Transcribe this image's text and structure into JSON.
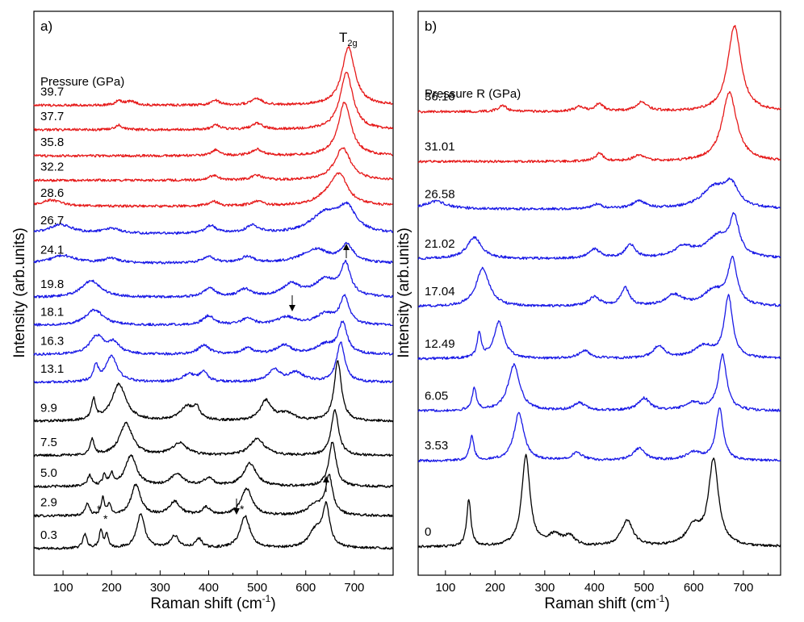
{
  "chart_data": [
    {
      "type": "line",
      "panel": "a)",
      "xlabel": "Raman shift (cm",
      "xlabel_sup": "-1",
      "xlabel_close": ")",
      "ylabel": "Intensity (arb.units)",
      "xlim": [
        40,
        780
      ],
      "xticks": [
        100,
        200,
        300,
        400,
        500,
        600,
        700
      ],
      "legend_title": "Pressure (GPa)",
      "peak_label_main": "T",
      "peak_label_sub": "2g",
      "star_label": "*",
      "series": [
        {
          "name": "0.3",
          "color": "#000000",
          "level": 0.0,
          "peaks": [
            [
              145,
              18,
              5
            ],
            [
              178,
              24,
              4
            ],
            [
              190,
              18,
              4
            ],
            [
              260,
              44,
              10
            ],
            [
              330,
              16,
              10
            ],
            [
              380,
              12,
              8
            ],
            [
              475,
              42,
              12
            ],
            [
              620,
              22,
              16
            ],
            [
              642,
              52,
              9
            ]
          ]
        },
        {
          "name": "2.9",
          "color": "#000000",
          "level": 1.0,
          "peaks": [
            [
              150,
              16,
              5
            ],
            [
              182,
              22,
              4
            ],
            [
              195,
              14,
              4
            ],
            [
              250,
              40,
              12
            ],
            [
              330,
              18,
              14
            ],
            [
              395,
              10,
              10
            ],
            [
              478,
              35,
              14
            ],
            [
              620,
              14,
              18
            ],
            [
              648,
              50,
              9
            ]
          ]
        },
        {
          "name": "5.0",
          "color": "#000000",
          "level": 1.9,
          "peaks": [
            [
              155,
              14,
              5
            ],
            [
              185,
              14,
              4
            ],
            [
              200,
              14,
              5
            ],
            [
              240,
              40,
              14
            ],
            [
              335,
              16,
              16
            ],
            [
              400,
              10,
              12
            ],
            [
              485,
              30,
              16
            ],
            [
              655,
              58,
              9
            ]
          ]
        },
        {
          "name": "7.5",
          "color": "#000000",
          "level": 2.85,
          "peaks": [
            [
              160,
              20,
              5
            ],
            [
              230,
              42,
              16
            ],
            [
              340,
              16,
              18
            ],
            [
              500,
              22,
              18
            ],
            [
              660,
              60,
              9
            ]
          ]
        },
        {
          "name": "9.9",
          "color": "#000000",
          "level": 3.9,
          "peaks": [
            [
              163,
              26,
              5
            ],
            [
              215,
              48,
              18
            ],
            [
              355,
              18,
              18
            ],
            [
              375,
              14,
              8
            ],
            [
              518,
              26,
              14
            ],
            [
              560,
              10,
              20
            ],
            [
              666,
              78,
              9
            ]
          ]
        },
        {
          "name": "13.1",
          "color": "#1a1ae6",
          "level": 5.1,
          "peaks": [
            [
              168,
              20,
              6
            ],
            [
              200,
              34,
              14
            ],
            [
              360,
              10,
              16
            ],
            [
              390,
              12,
              10
            ],
            [
              535,
              16,
              14
            ],
            [
              580,
              12,
              20
            ],
            [
              672,
              52,
              10
            ]
          ]
        },
        {
          "name": "16.3",
          "color": "#1a1ae6",
          "level": 5.95,
          "peaks": [
            [
              170,
              24,
              18
            ],
            [
              205,
              14,
              14
            ],
            [
              390,
              12,
              14
            ],
            [
              480,
              8,
              14
            ],
            [
              555,
              12,
              18
            ],
            [
              640,
              12,
              22
            ],
            [
              676,
              40,
              11
            ]
          ]
        },
        {
          "name": "18.1",
          "color": "#1a1ae6",
          "level": 6.85,
          "peaks": [
            [
              165,
              20,
              22
            ],
            [
              400,
              12,
              14
            ],
            [
              480,
              8,
              16
            ],
            [
              560,
              10,
              22
            ],
            [
              640,
              14,
              24
            ],
            [
              680,
              36,
              11
            ]
          ]
        },
        {
          "name": "19.8",
          "color": "#1a1ae6",
          "level": 7.7,
          "peaks": [
            [
              158,
              22,
              24
            ],
            [
              402,
              12,
              14
            ],
            [
              475,
              10,
              16
            ],
            [
              570,
              16,
              22
            ],
            [
              640,
              22,
              28
            ],
            [
              682,
              40,
              12
            ]
          ]
        },
        {
          "name": "24.1",
          "color": "#1a1ae6",
          "level": 8.75,
          "peaks": [
            [
              100,
              10,
              30
            ],
            [
              200,
              6,
              20
            ],
            [
              400,
              8,
              16
            ],
            [
              480,
              8,
              16
            ],
            [
              620,
              18,
              34
            ],
            [
              685,
              22,
              16
            ]
          ]
        },
        {
          "name": "26.7",
          "color": "#1a1ae6",
          "level": 9.65,
          "peaks": [
            [
              95,
              12,
              30
            ],
            [
              200,
              6,
              24
            ],
            [
              405,
              10,
              14
            ],
            [
              490,
              10,
              16
            ],
            [
              640,
              26,
              36
            ],
            [
              685,
              30,
              22
            ]
          ]
        },
        {
          "name": "28.6",
          "color": "#e61a1a",
          "level": 10.5,
          "peaks": [
            [
              75,
              8,
              26
            ],
            [
              410,
              6,
              12
            ],
            [
              500,
              6,
              14
            ],
            [
              660,
              26,
              30
            ],
            [
              672,
              20,
              16
            ]
          ]
        },
        {
          "name": "32.2",
          "color": "#e61a1a",
          "level": 11.3,
          "peaks": [
            [
              410,
              6,
              12
            ],
            [
              500,
              6,
              14
            ],
            [
              676,
              42,
              20
            ]
          ]
        },
        {
          "name": "35.8",
          "color": "#e61a1a",
          "level": 12.05,
          "peaks": [
            [
              415,
              8,
              10
            ],
            [
              500,
              8,
              14
            ],
            [
              680,
              70,
              16
            ]
          ]
        },
        {
          "name": "37.7",
          "color": "#e61a1a",
          "level": 12.85,
          "peaks": [
            [
              215,
              6,
              8
            ],
            [
              415,
              6,
              10
            ],
            [
              500,
              8,
              14
            ],
            [
              684,
              74,
              16
            ]
          ]
        },
        {
          "name": "39.7",
          "color": "#e61a1a",
          "level": 13.6,
          "peaks": [
            [
              215,
              6,
              8
            ],
            [
              240,
              5,
              12
            ],
            [
              415,
              6,
              10
            ],
            [
              500,
              8,
              14
            ],
            [
              688,
              76,
              16
            ]
          ]
        }
      ]
    },
    {
      "type": "line",
      "panel": "b)",
      "xlabel": "Raman shift (cm",
      "xlabel_sup": "-1",
      "xlabel_close": ")",
      "ylabel": "Intensity (arb.units)",
      "xlim": [
        45,
        775
      ],
      "xticks": [
        100,
        200,
        300,
        400,
        500,
        600,
        700
      ],
      "legend_title": "Pressure R (GPa)",
      "series": [
        {
          "name": "0",
          "color": "#000000",
          "level": 0.0,
          "peaks": [
            [
              147,
              62,
              5
            ],
            [
              262,
              118,
              10
            ],
            [
              320,
              14,
              16
            ],
            [
              350,
              12,
              12
            ],
            [
              466,
              34,
              14
            ],
            [
              600,
              24,
              18
            ],
            [
              640,
              112,
              12
            ]
          ]
        },
        {
          "name": "3.53",
          "color": "#1a1ae6",
          "level": 1.9,
          "peaks": [
            [
              153,
              32,
              5
            ],
            [
              248,
              62,
              12
            ],
            [
              365,
              10,
              14
            ],
            [
              490,
              16,
              14
            ],
            [
              600,
              10,
              20
            ],
            [
              652,
              68,
              9
            ]
          ]
        },
        {
          "name": "6.05",
          "color": "#1a1ae6",
          "level": 3.0,
          "peaks": [
            [
              158,
              30,
              5
            ],
            [
              238,
              60,
              14
            ],
            [
              370,
              10,
              14
            ],
            [
              500,
              16,
              14
            ],
            [
              600,
              10,
              20
            ],
            [
              658,
              72,
              10
            ]
          ]
        },
        {
          "name": "12.49",
          "color": "#1a1ae6",
          "level": 4.15,
          "peaks": [
            [
              168,
              32,
              5
            ],
            [
              208,
              48,
              12
            ],
            [
              380,
              10,
              14
            ],
            [
              530,
              16,
              14
            ],
            [
              620,
              16,
              24
            ],
            [
              670,
              80,
              10
            ]
          ]
        },
        {
          "name": "17.04",
          "color": "#1a1ae6",
          "level": 5.3,
          "peaks": [
            [
              175,
              50,
              16
            ],
            [
              400,
              12,
              14
            ],
            [
              462,
              24,
              10
            ],
            [
              560,
              14,
              20
            ],
            [
              640,
              20,
              26
            ],
            [
              678,
              58,
              11
            ]
          ]
        },
        {
          "name": "21.02",
          "color": "#1a1ae6",
          "level": 6.35,
          "peaks": [
            [
              158,
              28,
              18
            ],
            [
              400,
              12,
              14
            ],
            [
              472,
              18,
              12
            ],
            [
              580,
              14,
              24
            ],
            [
              650,
              28,
              30
            ],
            [
              682,
              46,
              11
            ]
          ]
        },
        {
          "name": "26.58",
          "color": "#1a1ae6",
          "level": 7.45,
          "peaks": [
            [
              80,
              10,
              28
            ],
            [
              405,
              6,
              12
            ],
            [
              490,
              10,
              16
            ],
            [
              640,
              26,
              30
            ],
            [
              675,
              28,
              18
            ]
          ]
        },
        {
          "name": "31.01",
          "color": "#e61a1a",
          "level": 8.5,
          "peaks": [
            [
              410,
              10,
              10
            ],
            [
              490,
              8,
              14
            ],
            [
              672,
              90,
              18
            ]
          ]
        },
        {
          "name": "36.16",
          "color": "#e61a1a",
          "level": 9.6,
          "peaks": [
            [
              215,
              8,
              10
            ],
            [
              370,
              6,
              12
            ],
            [
              410,
              10,
              10
            ],
            [
              495,
              12,
              14
            ],
            [
              682,
              112,
              16
            ]
          ]
        }
      ]
    }
  ]
}
